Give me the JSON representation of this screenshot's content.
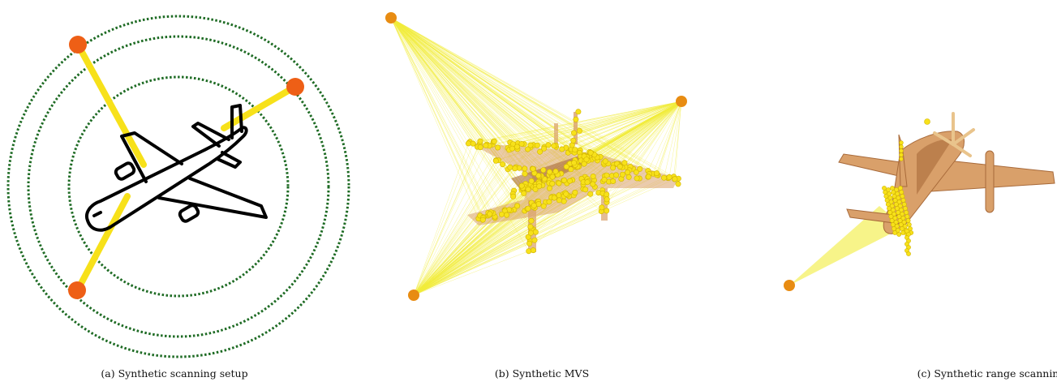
{
  "figure": {
    "panels": [
      {
        "caption": "(a) Synthetic scanning setup"
      },
      {
        "caption": "(b) Synthetic MVS"
      },
      {
        "caption": "(c) Synthetic range scanning"
      }
    ]
  },
  "colors": {
    "orbit": "#1e6b24",
    "camera": "#ee5f16",
    "camera_b": "#e88c12",
    "ray": "#f7e11a",
    "ray_faint": "#f1ec3a",
    "outline": "#000000",
    "mesh": "#d9a06a",
    "mesh_dark": "#a86a3a"
  }
}
